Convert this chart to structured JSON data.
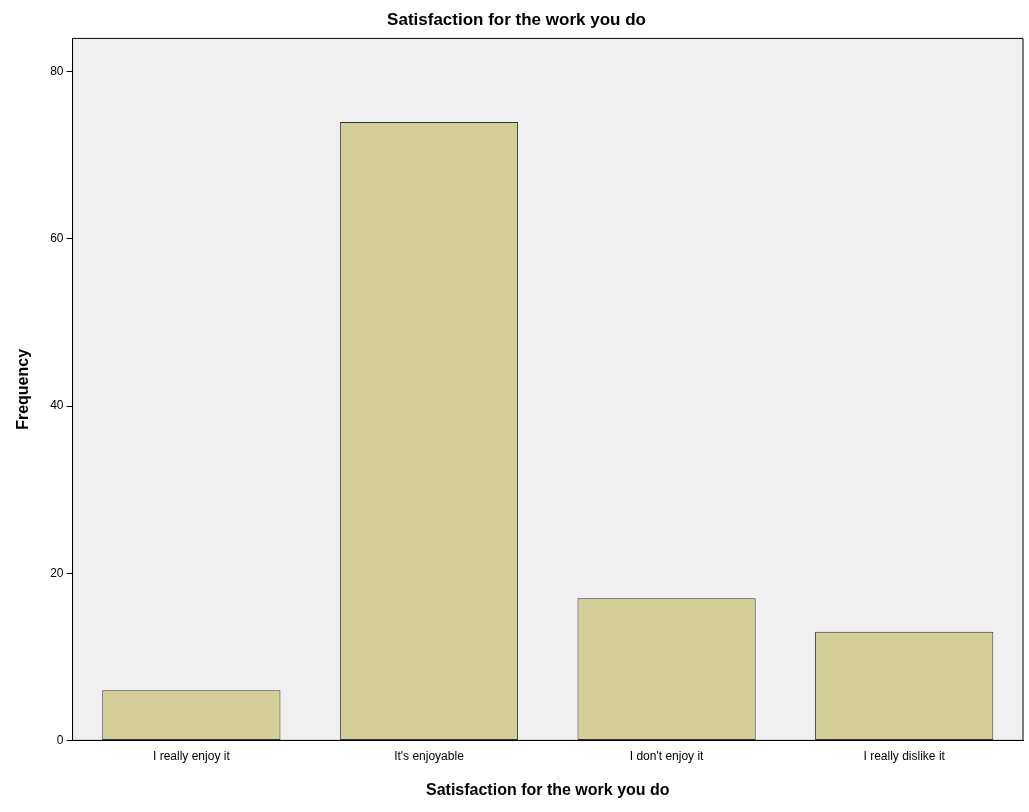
{
  "chart_data": {
    "type": "bar",
    "title": "Satisfaction for the work you do",
    "xlabel": "Satisfaction for the work you do",
    "ylabel": "Frequency",
    "categories": [
      "I really enjoy it",
      "It's enjoyable",
      "I don't enjoy it",
      "I really dislike it"
    ],
    "values": [
      6,
      74,
      17,
      13
    ],
    "color": "#d3ce97",
    "ylim": [
      0,
      84
    ],
    "yticks": [
      0,
      20,
      40,
      60,
      80
    ],
    "grid": false,
    "legend": false
  }
}
